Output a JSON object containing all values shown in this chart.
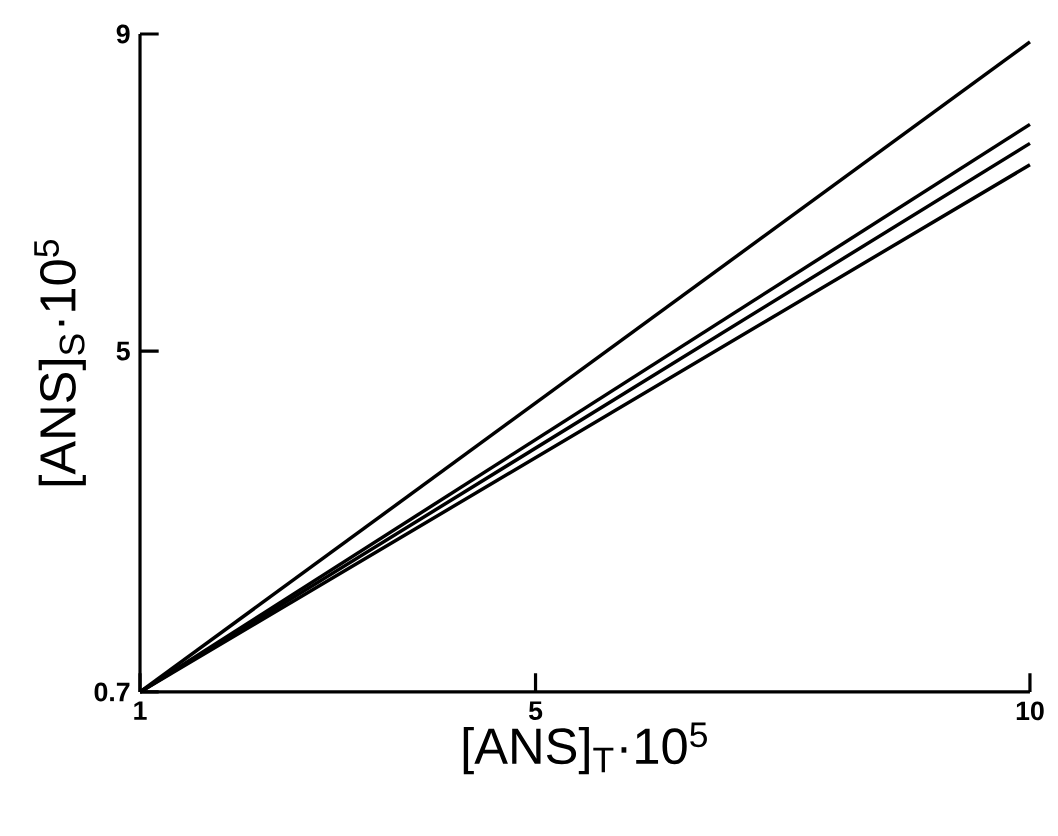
{
  "chart_data": {
    "type": "line",
    "xlabel": "[ANS]$_{T}$·10$^{5}$",
    "ylabel": "[ANS]$_{S}$·10$^{5}$",
    "x": [
      1,
      10
    ],
    "series": [
      {
        "color": "#000000",
        "values": [
          0.7,
          8.9
        ]
      },
      {
        "color": "#000000",
        "values": [
          0.7,
          7.86
        ]
      },
      {
        "color": "#000000",
        "values": [
          0.7,
          7.62
        ]
      },
      {
        "color": "#000000",
        "values": [
          0.7,
          7.35
        ]
      }
    ],
    "xlim": [
      1,
      10
    ],
    "ylim": [
      0.7,
      9
    ],
    "xticks": [
      1,
      5,
      10
    ],
    "yticks": [
      0.7,
      5,
      9
    ]
  }
}
